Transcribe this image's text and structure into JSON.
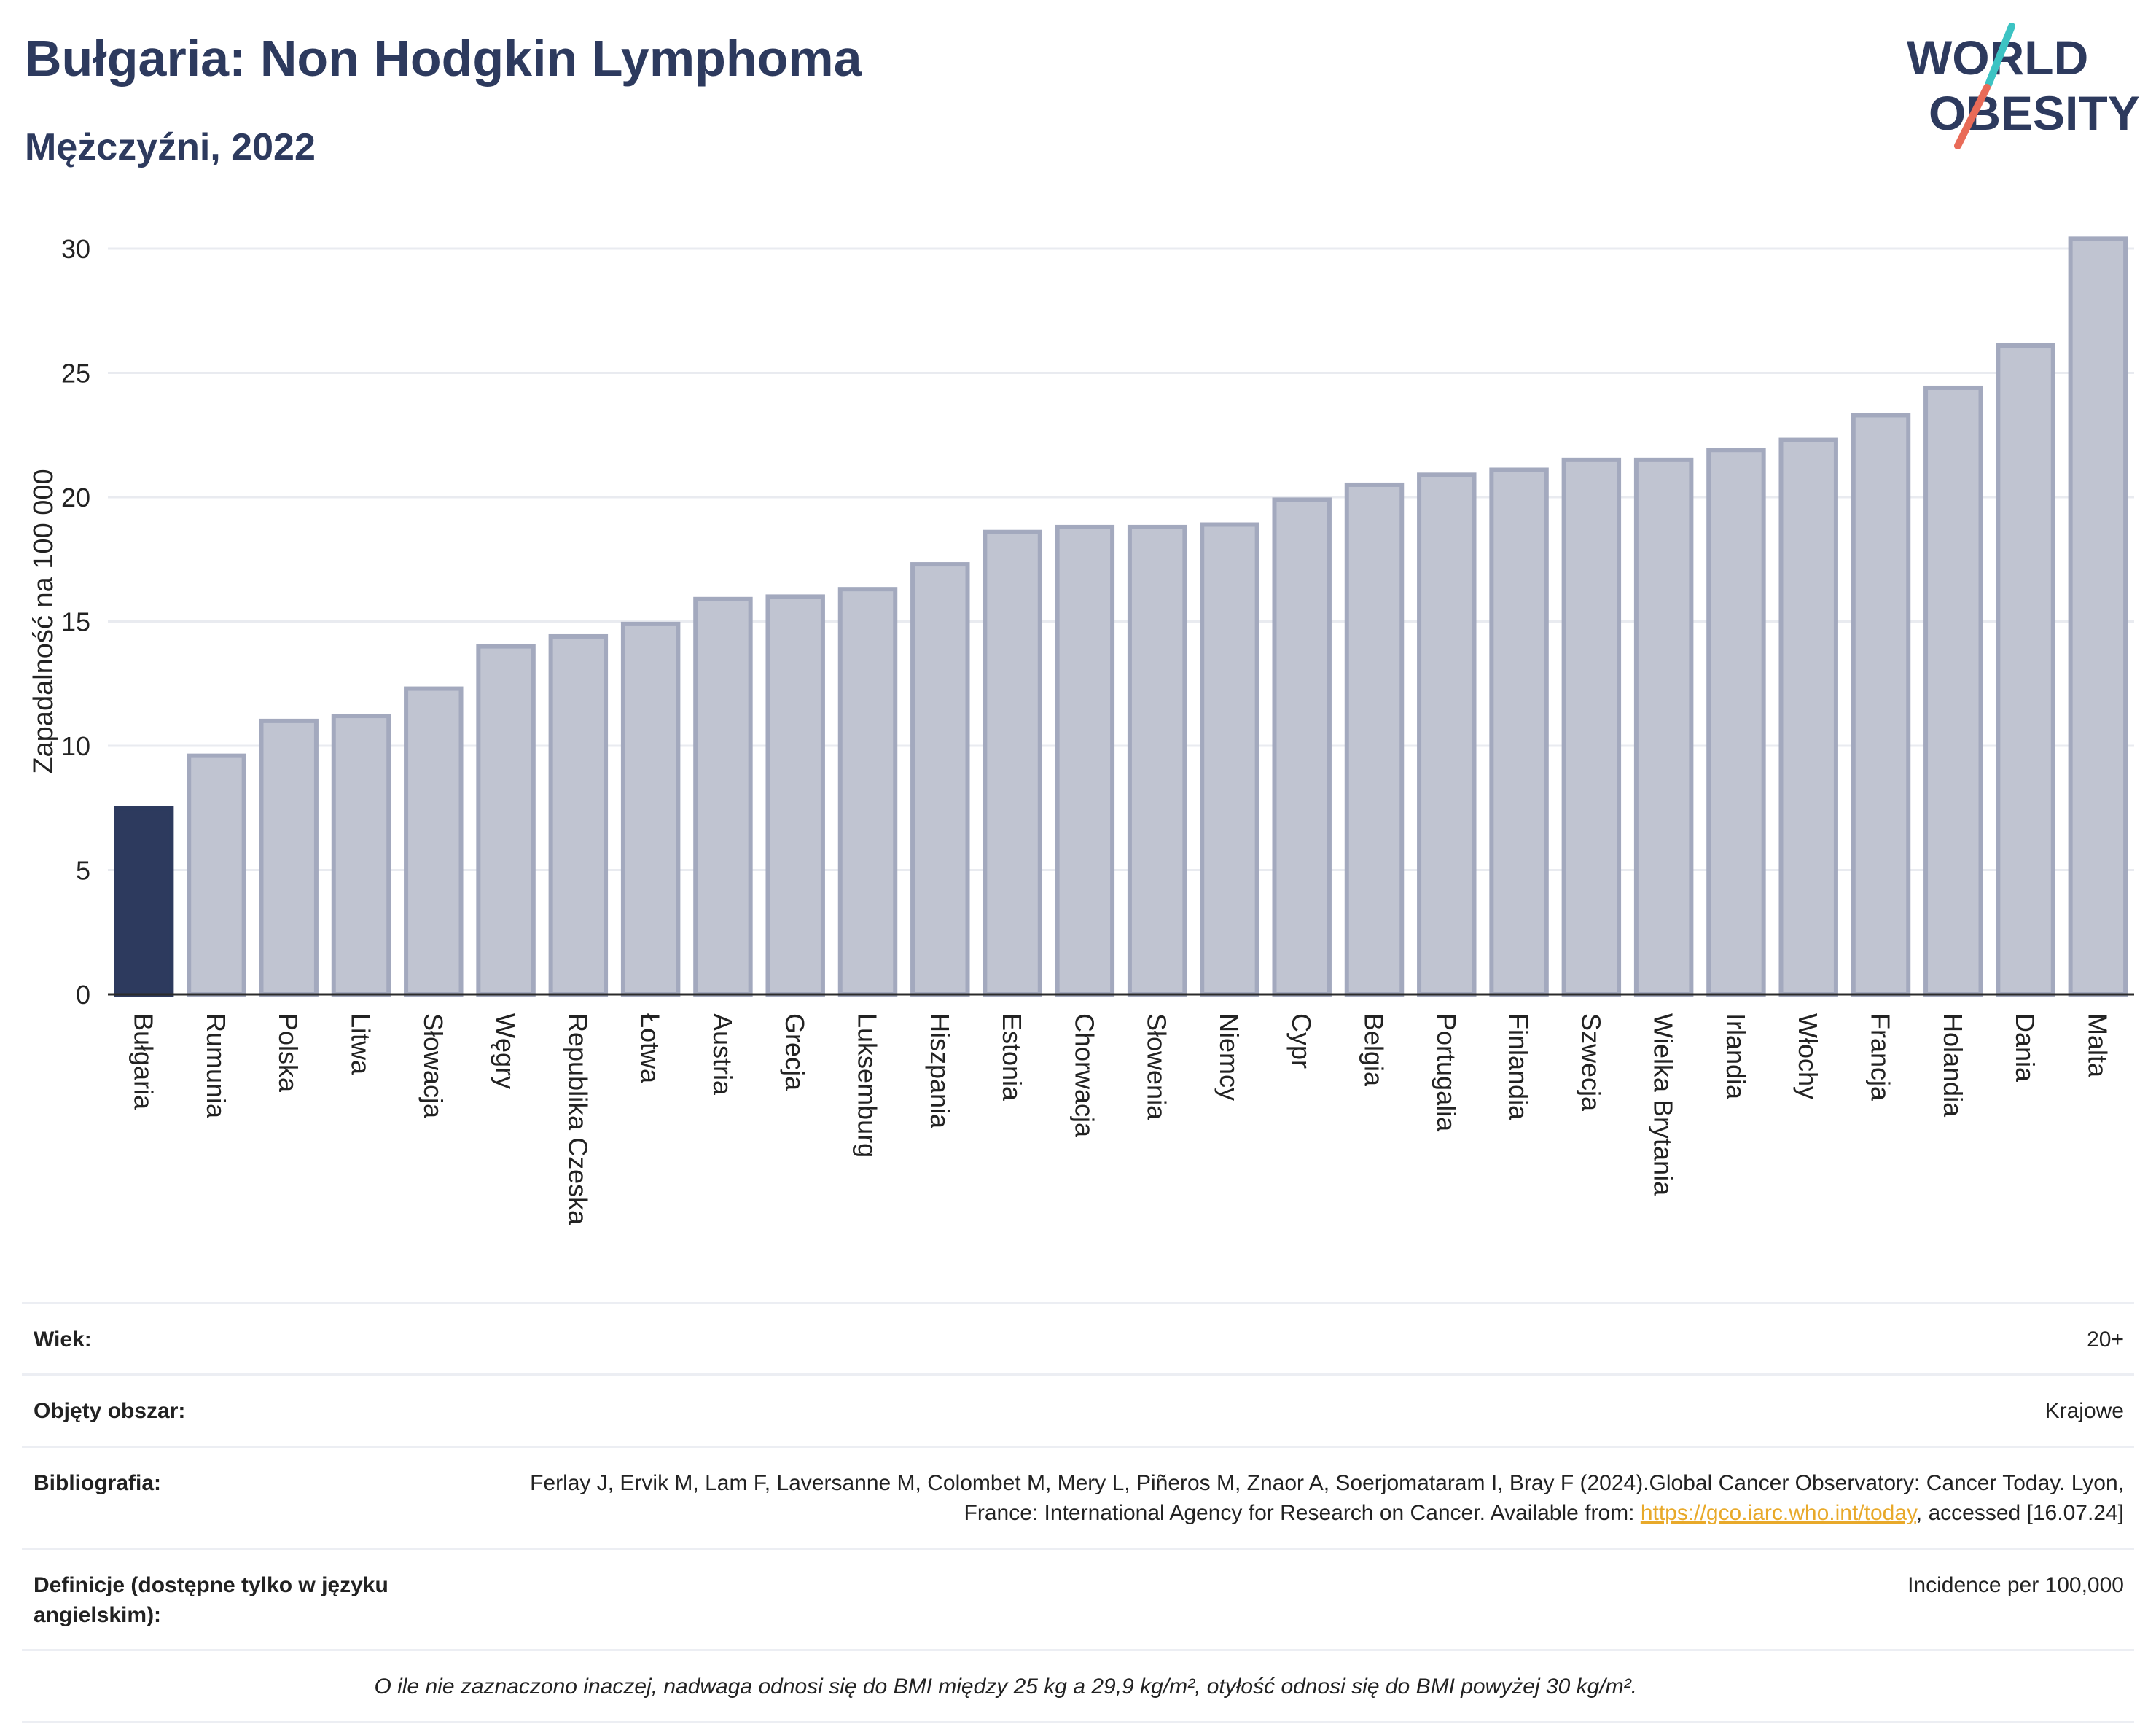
{
  "header": {
    "title": "Bułgaria: Non Hodgkin Lymphoma",
    "subtitle": "Mężczyźni, 2022",
    "logo_line1": "WORLD",
    "logo_line2": "OBESITY"
  },
  "colors": {
    "highlight": "#2d3a5e",
    "bar_fill": "#c0c4d1",
    "bar_stroke": "#a3a9be",
    "grid": "#e9ebf0",
    "logo_teal": "#3cc3c3",
    "logo_coral": "#e96b58"
  },
  "chart_data": {
    "type": "bar",
    "title": "Bułgaria: Non Hodgkin Lymphoma",
    "subtitle": "Mężczyźni, 2022",
    "xlabel": "",
    "ylabel": "Zapadalność na 100 000",
    "ylim": [
      0,
      30.5
    ],
    "yticks": [
      0,
      5,
      10,
      15,
      20,
      25,
      30
    ],
    "grid": true,
    "highlight_category": "Bułgaria",
    "categories": [
      "Bułgaria",
      "Rumunia",
      "Polska",
      "Litwa",
      "Słowacja",
      "Węgry",
      "Republika Czeska",
      "Łotwa",
      "Austria",
      "Grecja",
      "Luksemburg",
      "Hiszpania",
      "Estonia",
      "Chorwacja",
      "Słowenia",
      "Niemcy",
      "Cypr",
      "Belgia",
      "Portugalia",
      "Finlandia",
      "Szwecja",
      "Wielka Brytania",
      "Irlandia",
      "Włochy",
      "Francja",
      "Holandia",
      "Dania",
      "Malta"
    ],
    "values": [
      7.5,
      9.6,
      11.0,
      11.2,
      12.3,
      14.0,
      14.4,
      14.9,
      15.9,
      16.0,
      16.3,
      17.3,
      18.6,
      18.8,
      18.8,
      18.9,
      19.9,
      20.5,
      20.9,
      21.1,
      21.5,
      21.5,
      21.9,
      22.3,
      23.3,
      24.4,
      26.1,
      30.4
    ]
  },
  "meta": [
    {
      "label": "Wiek:",
      "value": "20+"
    },
    {
      "label": "Objęty obszar:",
      "value": "Krajowe"
    },
    {
      "label": "Bibliografia:",
      "value_before": "Ferlay J, Ervik M, Lam F, Laversanne M, Colombet M, Mery L, Piñeros M, Znaor A, Soerjomataram I, Bray F (2024).Global Cancer Observatory: Cancer Today. Lyon, France: International Agency for Research on Cancer. Available from: ",
      "link": "https://gco.iarc.who.int/today",
      "value_after": ", accessed [16.07.24]"
    },
    {
      "label": "Definicje (dostępne tylko w języku angielskim):",
      "value": "Incidence per 100,000"
    }
  ],
  "footnote": "O ile nie zaznaczono inaczej, nadwaga odnosi się do BMI między 25 kg a 29,9 kg/m², otyłość odnosi się do BMI powyżej 30 kg/m²."
}
